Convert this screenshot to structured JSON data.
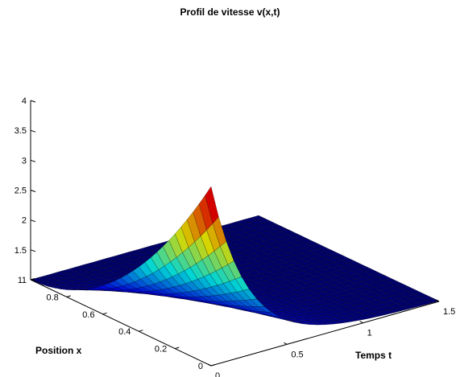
{
  "chart_data": {
    "type": "surface3d",
    "title": "Profil de vitesse v(x,t)",
    "xlabel": "Temps t",
    "ylabel": "Position x",
    "zlabel": "",
    "xlim": [
      0,
      1.5
    ],
    "ylim": [
      0,
      1
    ],
    "zlim": [
      1,
      4
    ],
    "x_ticks": [
      "0",
      "0.5",
      "1",
      "1.5"
    ],
    "y_ticks": [
      "0",
      "0.2",
      "0.4",
      "0.6",
      "0.8",
      "1"
    ],
    "z_ticks": [
      "1",
      "1.5",
      "2",
      "2.5",
      "3",
      "3.5",
      "4"
    ],
    "colormap": "jet",
    "grid": false,
    "surface": {
      "description_values": "v = 1 + 3*(1-x)^2 * exp(-t/0.25) for x in [0,1], t in [0,1.5]",
      "x_samples": 30,
      "y_samples": 30
    }
  }
}
